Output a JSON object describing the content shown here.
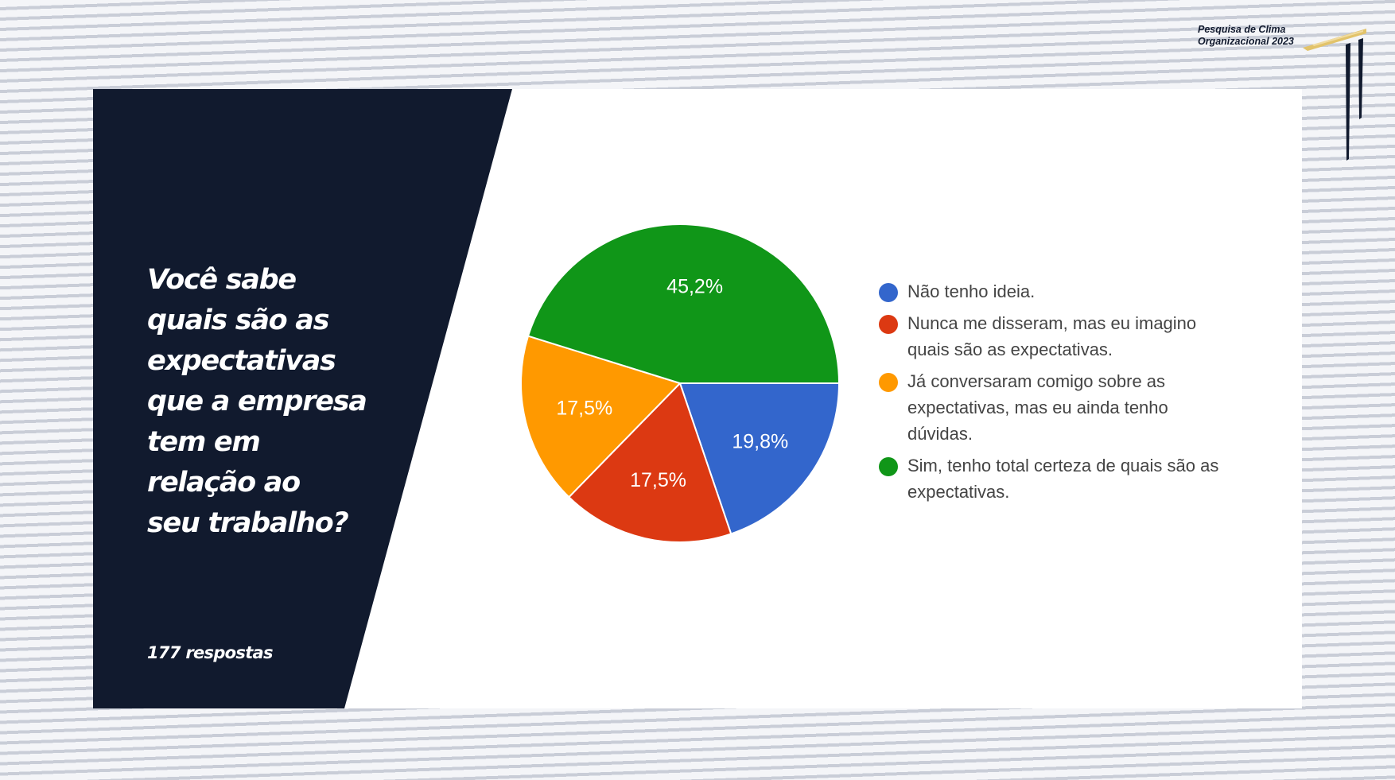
{
  "brand": {
    "line1": "Pesquisa de Clima",
    "line2": "Organizacional 2023"
  },
  "question": {
    "text": "Você sabe quais são as expectativas que a empresa tem em relação ao seu trabalho?",
    "lines": [
      "Você sabe",
      "quais são as",
      "expectativas",
      "que a empresa",
      "tem em",
      "relação ao",
      "seu trabalho?"
    ]
  },
  "responses": "177 respostas",
  "colors": {
    "navy": "#111a2e",
    "gold": "#e2c36a",
    "blue": "#3366cc",
    "red": "#dc3912",
    "orange": "#ff9900",
    "green": "#109618"
  },
  "chart_data": {
    "type": "pie",
    "start_angle_deg": 90,
    "direction": "clockwise",
    "slices": [
      {
        "label": "Não tenho ideia.",
        "value": 19.8,
        "display": "19,8%",
        "color": "#3366cc"
      },
      {
        "label": "Nunca me disseram, mas eu imagino quais são as expectativas.",
        "value": 17.5,
        "display": "17,5%",
        "color": "#dc3912"
      },
      {
        "label": "Já conversaram comigo sobre as expectativas, mas eu ainda tenho dúvidas.",
        "value": 17.5,
        "display": "17,5%",
        "color": "#ff9900"
      },
      {
        "label": "Sim, tenho total certeza de quais são as expectativas.",
        "value": 45.2,
        "display": "45,2%",
        "color": "#109618"
      }
    ],
    "legend": [
      {
        "lines": [
          "Não tenho ideia."
        ]
      },
      {
        "lines": [
          "Nunca me disseram, mas eu imagino",
          "quais são as expectativas."
        ]
      },
      {
        "lines": [
          "Já conversaram comigo sobre as",
          "expectativas, mas eu ainda tenho",
          "dúvidas."
        ]
      },
      {
        "lines": [
          "Sim, tenho total certeza de quais são as",
          "expectativas."
        ]
      }
    ],
    "legend_position": "right"
  }
}
